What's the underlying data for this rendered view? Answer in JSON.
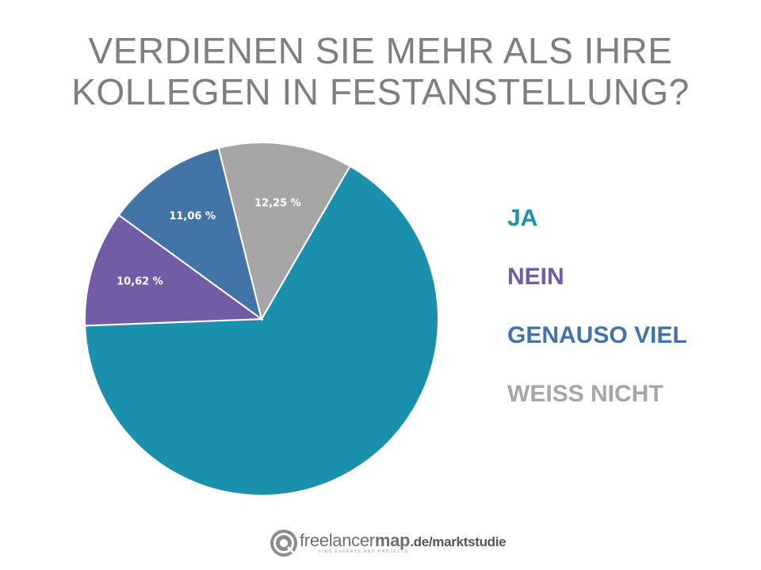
{
  "chart_data": {
    "type": "pie",
    "title": "VERDIENEN SIE MEHR ALS IHRE KOLLEGEN IN FESTANSTELLUNG?",
    "title_lines": [
      "VERDIENEN SIE MEHR ALS IHRE",
      "KOLLEGEN IN FESTANSTELLUNG?"
    ],
    "start_angle_deg": 30,
    "direction": "clockwise",
    "legend_position": "right",
    "slices": [
      {
        "name": "JA",
        "value": 66.07,
        "label": "66,07 %",
        "color": "#1b90ad"
      },
      {
        "name": "NEIN",
        "value": 10.62,
        "label": "10,62 %",
        "color": "#735ca6"
      },
      {
        "name": "GENAUSO VIEL",
        "value": 11.06,
        "label": "11,06 %",
        "color": "#4374a8"
      },
      {
        "name": "WEISS NICHT",
        "value": 12.25,
        "label": "12,25 %",
        "color": "#a6a6a6"
      }
    ]
  },
  "footer": {
    "brand_part1": "freelancer",
    "brand_part2": "map",
    "brand_suffix": ".de/marktstudie",
    "tagline": "FIND EXPERTS AND PROJECTS",
    "logo_icon": "freelancermap-logo-icon"
  }
}
